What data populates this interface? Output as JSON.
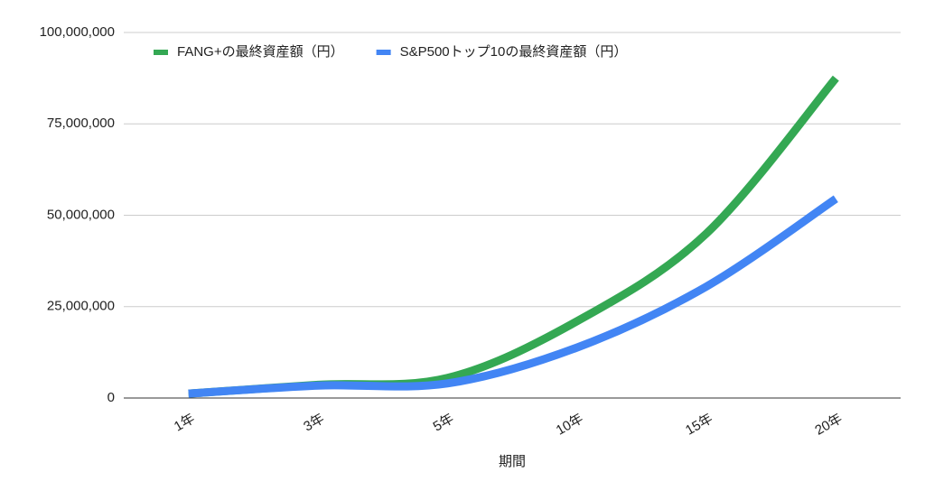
{
  "chart_data": {
    "type": "line",
    "x_label": "期間",
    "categories": [
      "1年",
      "3年",
      "5年",
      "10年",
      "15年",
      "20年"
    ],
    "series": [
      {
        "name": "FANG+の最終資産額（円）",
        "color": "#34a853",
        "values": [
          1200000,
          3600000,
          5500000,
          21000000,
          45000000,
          87500000
        ]
      },
      {
        "name": "S&P500トップ10の最終資産額（円）",
        "color": "#4285f4",
        "values": [
          1200000,
          3400000,
          4000000,
          13800000,
          30500000,
          54500000
        ]
      }
    ],
    "ylim": [
      0,
      100000000
    ],
    "yticks": [
      0,
      {
        "value": 25000000,
        "label": "25,000,000"
      },
      {
        "value": 50000000,
        "label": "50,000,000"
      },
      {
        "value": 75000000,
        "label": "75,000,000"
      },
      {
        "value": 100000000,
        "label": "100,000,000"
      }
    ],
    "grid": true,
    "legend": "top"
  }
}
